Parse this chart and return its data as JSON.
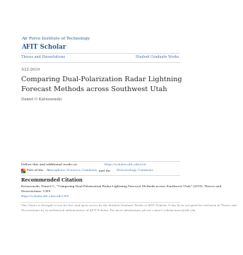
{
  "bg_color": "#ffffff",
  "blue_dark": "#2e5c8e",
  "link_color": "#4a7ab5",
  "gray_line": "#cccccc",
  "text_dark": "#2a2a2a",
  "text_gray": "#555555",
  "text_light": "#888888",
  "institution_line1": "Air Force Institute of Technology",
  "institution_line2": "AFIT Scholar",
  "nav_left": "Theses and Dissertations",
  "nav_right": "Student Graduate Works",
  "date": "3-22-2019",
  "title_line1": "Comparing Dual-Polarization Radar Lightning",
  "title_line2": "Forecast Methods across Southwest Utah",
  "author": "Daniel O Katuszenski",
  "follow_pre": "Follow this and additional works at: ",
  "follow_link": "https://scholar.afit.edu/etd",
  "part_pre": "Part of the ",
  "part_link1": "Atmospheric Sciences Commons",
  "part_mid": ", and the ",
  "part_link2": "Meteorology Commons",
  "citation_header": "Recommended Citation",
  "citation_body1": "Katuszenski, Daniel O., \"Comparing Dual-Polarization Radar Lightning Forecast Methods across Southwest Utah\" (2019). Theses and",
  "citation_body2": "Dissertations. 1369.",
  "citation_link": "https://scholar.afit.edu/etd/1369",
  "footer1": "This Thesis is brought to you for free and open access by the Student Graduate Works at AFIT Scholar. It has been accepted for inclusion in Theses and",
  "footer2": "Dissertations by an authorized administrator of AFIT Scholar. For more information, please contact scholar.marc@afit.edu."
}
